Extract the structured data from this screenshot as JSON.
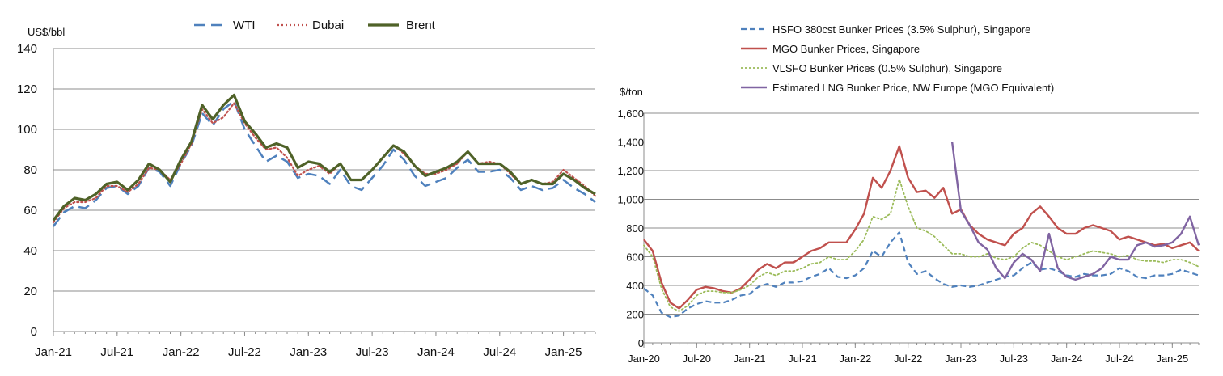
{
  "chart_data": [
    {
      "type": "line",
      "ylabel": "US$/bbl",
      "ylim": [
        0,
        140
      ],
      "yticks": [
        "0",
        "20",
        "40",
        "60",
        "80",
        "100",
        "120",
        "140"
      ],
      "xticks": [
        "Jan-21",
        "Jul-21",
        "Jan-22",
        "Jul-22",
        "Jan-23",
        "Jul-23",
        "Jan-24",
        "Jul-24",
        "Jan-25"
      ],
      "grid": "horizontal",
      "legend_position": "top",
      "x": [
        "2021-01",
        "2021-02",
        "2021-03",
        "2021-04",
        "2021-05",
        "2021-06",
        "2021-07",
        "2021-08",
        "2021-09",
        "2021-10",
        "2021-11",
        "2021-12",
        "2022-01",
        "2022-02",
        "2022-03",
        "2022-04",
        "2022-05",
        "2022-06",
        "2022-07",
        "2022-08",
        "2022-09",
        "2022-10",
        "2022-11",
        "2022-12",
        "2023-01",
        "2023-02",
        "2023-03",
        "2023-04",
        "2023-05",
        "2023-06",
        "2023-07",
        "2023-08",
        "2023-09",
        "2023-10",
        "2023-11",
        "2023-12",
        "2024-01",
        "2024-02",
        "2024-03",
        "2024-04",
        "2024-05",
        "2024-06",
        "2024-07",
        "2024-08",
        "2024-09",
        "2024-10",
        "2024-11",
        "2024-12",
        "2025-01",
        "2025-02",
        "2025-03",
        "2025-04"
      ],
      "series": [
        {
          "name": "WTI",
          "color": "#4f81bd",
          "dash": "long-dash",
          "values": [
            52,
            59,
            62,
            61,
            65,
            71,
            72,
            68,
            72,
            81,
            79,
            72,
            83,
            92,
            108,
            102,
            110,
            114,
            100,
            92,
            84,
            87,
            84,
            76,
            78,
            77,
            73,
            80,
            72,
            70,
            76,
            82,
            90,
            85,
            77,
            72,
            74,
            76,
            81,
            85,
            79,
            79,
            80,
            76,
            70,
            72,
            70,
            71,
            75,
            71,
            68,
            64
          ]
        },
        {
          "name": "Dubai",
          "color": "#c0504d",
          "dash": "dotted",
          "values": [
            54,
            61,
            64,
            64,
            66,
            72,
            72,
            69,
            73,
            81,
            80,
            75,
            83,
            93,
            110,
            103,
            106,
            113,
            103,
            96,
            90,
            91,
            86,
            77,
            80,
            82,
            78,
            83,
            75,
            75,
            80,
            86,
            92,
            88,
            82,
            78,
            78,
            80,
            83,
            89,
            83,
            84,
            83,
            78,
            73,
            75,
            73,
            74,
            80,
            76,
            72,
            67
          ]
        },
        {
          "name": "Brent",
          "color": "#4f6228",
          "dash": "solid",
          "values": [
            55,
            62,
            66,
            65,
            68,
            73,
            74,
            70,
            75,
            83,
            80,
            74,
            85,
            94,
            112,
            105,
            112,
            117,
            104,
            98,
            91,
            93,
            91,
            81,
            84,
            83,
            79,
            83,
            75,
            75,
            80,
            86,
            92,
            89,
            82,
            77,
            79,
            81,
            84,
            89,
            83,
            83,
            83,
            79,
            73,
            75,
            73,
            73,
            78,
            75,
            71,
            68
          ]
        }
      ]
    },
    {
      "type": "line",
      "ylabel": "$/ton",
      "ylim": [
        0,
        1600
      ],
      "yticks": [
        "0",
        "200",
        "400",
        "600",
        "800",
        "1,000",
        "1,200",
        "1,400",
        "1,600"
      ],
      "xticks": [
        "Jan-20",
        "Jul-20",
        "Jan-21",
        "Jul-21",
        "Jan-22",
        "Jul-22",
        "Jan-23",
        "Jul-23",
        "Jan-24",
        "Jul-24",
        "Jan-25"
      ],
      "grid": "horizontal",
      "legend_position": "top",
      "x": [
        "2020-01",
        "2020-02",
        "2020-03",
        "2020-04",
        "2020-05",
        "2020-06",
        "2020-07",
        "2020-08",
        "2020-09",
        "2020-10",
        "2020-11",
        "2020-12",
        "2021-01",
        "2021-02",
        "2021-03",
        "2021-04",
        "2021-05",
        "2021-06",
        "2021-07",
        "2021-08",
        "2021-09",
        "2021-10",
        "2021-11",
        "2021-12",
        "2022-01",
        "2022-02",
        "2022-03",
        "2022-04",
        "2022-05",
        "2022-06",
        "2022-07",
        "2022-08",
        "2022-09",
        "2022-10",
        "2022-11",
        "2022-12",
        "2023-01",
        "2023-02",
        "2023-03",
        "2023-04",
        "2023-05",
        "2023-06",
        "2023-07",
        "2023-08",
        "2023-09",
        "2023-10",
        "2023-11",
        "2023-12",
        "2024-01",
        "2024-02",
        "2024-03",
        "2024-04",
        "2024-05",
        "2024-06",
        "2024-07",
        "2024-08",
        "2024-09",
        "2024-10",
        "2024-11",
        "2024-12",
        "2025-01",
        "2025-02",
        "2025-03",
        "2025-04"
      ],
      "series": [
        {
          "name": "HSFO 380cst Bunker Prices (3.5% Sulphur), Singapore",
          "color": "#4f81bd",
          "dash": "dashed",
          "values": [
            380,
            330,
            210,
            180,
            190,
            240,
            270,
            290,
            280,
            280,
            300,
            330,
            340,
            390,
            410,
            390,
            420,
            420,
            430,
            460,
            480,
            520,
            460,
            450,
            470,
            520,
            640,
            600,
            700,
            770,
            560,
            480,
            500,
            450,
            410,
            390,
            400,
            390,
            400,
            420,
            440,
            460,
            470,
            520,
            560,
            510,
            520,
            500,
            470,
            460,
            480,
            470,
            470,
            480,
            520,
            500,
            460,
            450,
            470,
            470,
            480,
            510,
            490,
            470
          ]
        },
        {
          "name": "MGO Bunker Prices, Singapore",
          "color": "#c0504d",
          "dash": "solid",
          "values": [
            720,
            640,
            420,
            280,
            240,
            300,
            370,
            390,
            380,
            360,
            350,
            380,
            440,
            510,
            550,
            520,
            560,
            560,
            600,
            640,
            660,
            700,
            700,
            700,
            790,
            900,
            1150,
            1080,
            1200,
            1370,
            1150,
            1050,
            1060,
            1010,
            1080,
            900,
            930,
            820,
            760,
            720,
            700,
            680,
            760,
            800,
            900,
            950,
            880,
            800,
            760,
            760,
            800,
            820,
            800,
            780,
            720,
            740,
            720,
            700,
            680,
            690,
            660,
            680,
            700,
            640
          ]
        },
        {
          "name": "VLSFO Bunker Prices (0.5% Sulphur), Singapore",
          "color": "#9bbb59",
          "dash": "dotted",
          "values": [
            680,
            600,
            380,
            250,
            220,
            260,
            330,
            360,
            360,
            350,
            350,
            370,
            400,
            460,
            490,
            470,
            500,
            500,
            520,
            550,
            560,
            600,
            580,
            580,
            640,
            720,
            880,
            860,
            900,
            1140,
            950,
            800,
            780,
            740,
            680,
            620,
            620,
            600,
            600,
            620,
            590,
            580,
            600,
            660,
            700,
            680,
            640,
            600,
            580,
            600,
            620,
            640,
            630,
            620,
            600,
            610,
            580,
            570,
            570,
            560,
            580,
            580,
            560,
            530
          ]
        },
        {
          "name": "Estimated LNG Bunker Price, NW Europe (MGO Equivalent)",
          "color": "#8064a2",
          "dash": "solid",
          "values": [
            null,
            null,
            null,
            null,
            null,
            null,
            null,
            null,
            null,
            null,
            null,
            null,
            null,
            null,
            null,
            null,
            null,
            null,
            null,
            null,
            null,
            null,
            null,
            null,
            null,
            null,
            null,
            null,
            null,
            null,
            null,
            null,
            null,
            null,
            null,
            1400,
            920,
            820,
            700,
            650,
            520,
            450,
            560,
            620,
            580,
            500,
            760,
            520,
            460,
            440,
            460,
            480,
            520,
            600,
            580,
            580,
            680,
            700,
            670,
            680,
            700,
            760,
            880,
            680
          ]
        }
      ]
    }
  ]
}
